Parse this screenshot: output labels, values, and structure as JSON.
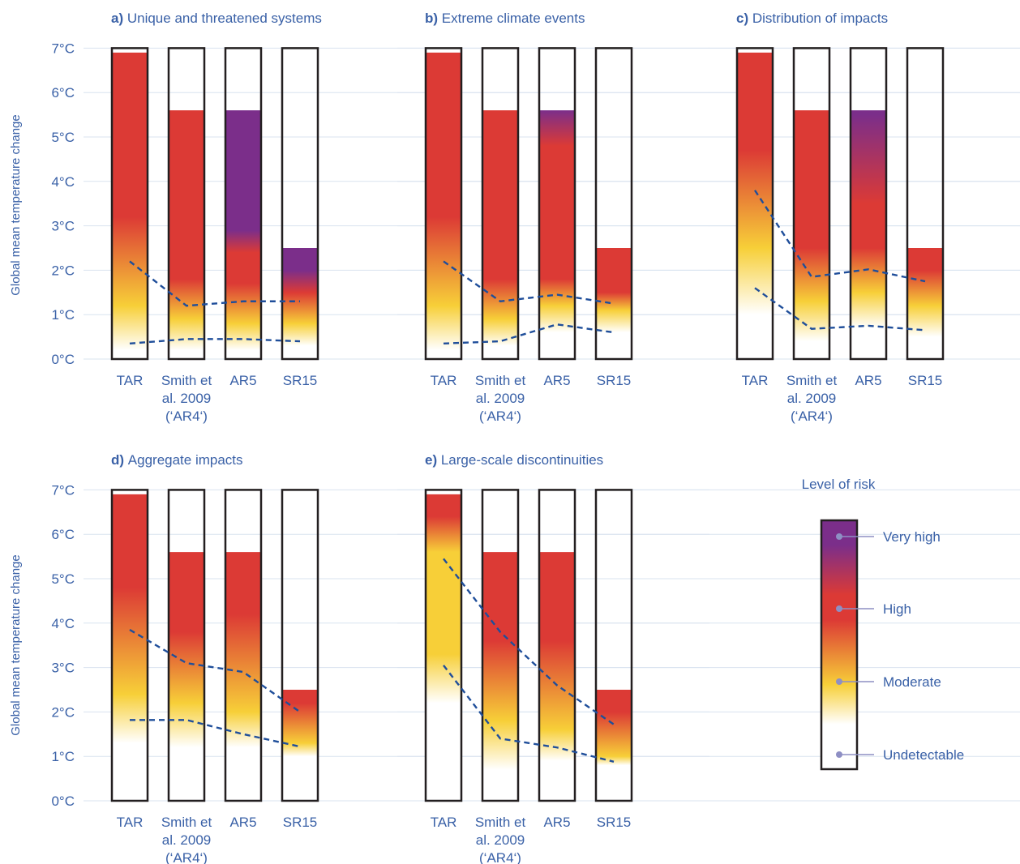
{
  "figure": {
    "ylabel": "Global mean temperature change",
    "y_ticks": [
      "0°C",
      "1°C",
      "2°C",
      "3°C",
      "4°C",
      "5°C",
      "6°C",
      "7°C"
    ],
    "assessments": [
      "TAR",
      "Smith et al. 2009 (‘AR4‘)",
      "AR5",
      "SR15"
    ],
    "category_label_lines": [
      [
        "TAR"
      ],
      [
        "Smith et",
        "al. 2009",
        "(‘AR4‘)"
      ],
      [
        "AR5"
      ],
      [
        "SR15"
      ]
    ],
    "colors": {
      "text_blue": "#3a61a7",
      "dashed_line": "#1f4e9a",
      "grid": "#d9e3ef",
      "undetectable": "#ffffff",
      "moderate": "#f7cf38",
      "high": "#dc3a35",
      "very_high": "#7b2e8a"
    }
  },
  "legend": {
    "title": "Level of risk",
    "levels": [
      "Very high",
      "High",
      "Moderate",
      "Undetectable"
    ]
  },
  "chart_data": [
    {
      "type": "bar",
      "panel": "a)",
      "title": "Unique and threatened systems",
      "ylabel": "Global mean temperature change",
      "ylim": [
        0,
        7
      ],
      "categories": [
        "TAR",
        "Smith et al. 2009 (‘AR4‘)",
        "AR5",
        "SR15"
      ],
      "bars": [
        {
          "top": 6.9,
          "stops": [
            [
              0.2,
              "u"
            ],
            [
              1.2,
              "m"
            ],
            [
              3.2,
              "h"
            ]
          ]
        },
        {
          "top": 5.6,
          "stops": [
            [
              0.2,
              "u"
            ],
            [
              0.9,
              "m"
            ],
            [
              1.8,
              "h"
            ]
          ]
        },
        {
          "top": 5.6,
          "stops": [
            [
              0.2,
              "u"
            ],
            [
              0.8,
              "m"
            ],
            [
              1.7,
              "h"
            ],
            [
              2.4,
              "h"
            ],
            [
              2.9,
              "v"
            ]
          ]
        },
        {
          "top": 2.5,
          "stops": [
            [
              0.3,
              "u"
            ],
            [
              0.8,
              "m"
            ],
            [
              1.5,
              "h"
            ],
            [
              2.0,
              "v"
            ]
          ]
        }
      ],
      "lines": [
        [
          2.2,
          1.2,
          1.3,
          1.3
        ],
        [
          0.35,
          0.45,
          0.45,
          0.4
        ]
      ]
    },
    {
      "type": "bar",
      "panel": "b)",
      "title": "Extreme climate events",
      "ylabel": "",
      "ylim": [
        0,
        7
      ],
      "categories": [
        "TAR",
        "Smith et al. 2009 (‘AR4‘)",
        "AR5",
        "SR15"
      ],
      "bars": [
        {
          "top": 6.9,
          "stops": [
            [
              0.2,
              "u"
            ],
            [
              1.2,
              "m"
            ],
            [
              3.2,
              "h"
            ]
          ]
        },
        {
          "top": 5.6,
          "stops": [
            [
              0.3,
              "u"
            ],
            [
              0.9,
              "m"
            ],
            [
              1.8,
              "h"
            ]
          ]
        },
        {
          "top": 5.6,
          "stops": [
            [
              0.6,
              "u"
            ],
            [
              1.2,
              "m"
            ],
            [
              1.8,
              "h"
            ],
            [
              4.8,
              "h"
            ],
            [
              6.0,
              "v"
            ]
          ]
        },
        {
          "top": 2.5,
          "stops": [
            [
              0.6,
              "u"
            ],
            [
              1.1,
              "m"
            ],
            [
              1.5,
              "h"
            ]
          ]
        }
      ],
      "lines": [
        [
          2.2,
          1.3,
          1.45,
          1.25
        ],
        [
          0.35,
          0.4,
          0.78,
          0.6
        ]
      ]
    },
    {
      "type": "bar",
      "panel": "c)",
      "title": "Distribution of impacts",
      "ylabel": "",
      "ylim": [
        0,
        7
      ],
      "categories": [
        "TAR",
        "Smith et al. 2009 (‘AR4‘)",
        "AR5",
        "SR15"
      ],
      "bars": [
        {
          "top": 6.9,
          "stops": [
            [
              1.0,
              "u"
            ],
            [
              2.5,
              "m"
            ],
            [
              4.7,
              "h"
            ]
          ]
        },
        {
          "top": 5.6,
          "stops": [
            [
              0.4,
              "u"
            ],
            [
              1.3,
              "m"
            ],
            [
              2.5,
              "h"
            ]
          ]
        },
        {
          "top": 5.6,
          "stops": [
            [
              0.7,
              "u"
            ],
            [
              1.5,
              "m"
            ],
            [
              2.5,
              "h"
            ],
            [
              3.5,
              "h"
            ],
            [
              5.5,
              "v"
            ]
          ]
        },
        {
          "top": 2.5,
          "stops": [
            [
              0.5,
              "u"
            ],
            [
              1.2,
              "m"
            ],
            [
              2.0,
              "h"
            ]
          ]
        }
      ],
      "lines": [
        [
          3.8,
          1.85,
          2.02,
          1.75
        ],
        [
          1.6,
          0.68,
          0.75,
          0.65
        ]
      ]
    },
    {
      "type": "bar",
      "panel": "d)",
      "title": "Aggregate impacts",
      "ylabel": "Global mean temperature change",
      "ylim": [
        0,
        7
      ],
      "categories": [
        "TAR",
        "Smith et al. 2009 (‘AR4‘)",
        "AR5",
        "SR15"
      ],
      "bars": [
        {
          "top": 6.9,
          "stops": [
            [
              1.3,
              "u"
            ],
            [
              2.4,
              "m"
            ],
            [
              4.8,
              "h"
            ]
          ]
        },
        {
          "top": 5.6,
          "stops": [
            [
              1.2,
              "u"
            ],
            [
              2.2,
              "m"
            ],
            [
              3.8,
              "h"
            ]
          ]
        },
        {
          "top": 5.6,
          "stops": [
            [
              1.2,
              "u"
            ],
            [
              2.0,
              "m"
            ],
            [
              4.2,
              "h"
            ]
          ]
        },
        {
          "top": 2.5,
          "stops": [
            [
              1.0,
              "u"
            ],
            [
              1.3,
              "m"
            ],
            [
              2.2,
              "h"
            ]
          ]
        }
      ],
      "lines": [
        [
          3.85,
          3.1,
          2.9,
          2.0
        ],
        [
          1.82,
          1.82,
          1.5,
          1.22
        ]
      ]
    },
    {
      "type": "bar",
      "panel": "e)",
      "title": "Large-scale discontinuities",
      "ylabel": "",
      "ylim": [
        0,
        7
      ],
      "categories": [
        "TAR",
        "Smith et al. 2009 (‘AR4‘)",
        "AR5",
        "SR15"
      ],
      "bars": [
        {
          "top": 6.9,
          "stops": [
            [
              2.2,
              "u"
            ],
            [
              3.3,
              "m"
            ],
            [
              5.6,
              "m"
            ],
            [
              6.4,
              "h"
            ]
          ]
        },
        {
          "top": 5.6,
          "stops": [
            [
              0.7,
              "u"
            ],
            [
              1.8,
              "m"
            ],
            [
              3.6,
              "h"
            ]
          ]
        },
        {
          "top": 5.6,
          "stops": [
            [
              0.9,
              "u"
            ],
            [
              1.6,
              "m"
            ],
            [
              3.6,
              "h"
            ]
          ]
        },
        {
          "top": 2.5,
          "stops": [
            [
              0.8,
              "u"
            ],
            [
              1.0,
              "m"
            ],
            [
              2.0,
              "h"
            ]
          ]
        }
      ],
      "lines": [
        [
          5.45,
          3.8,
          2.6,
          1.72
        ],
        [
          3.05,
          1.4,
          1.2,
          0.88
        ]
      ]
    }
  ]
}
